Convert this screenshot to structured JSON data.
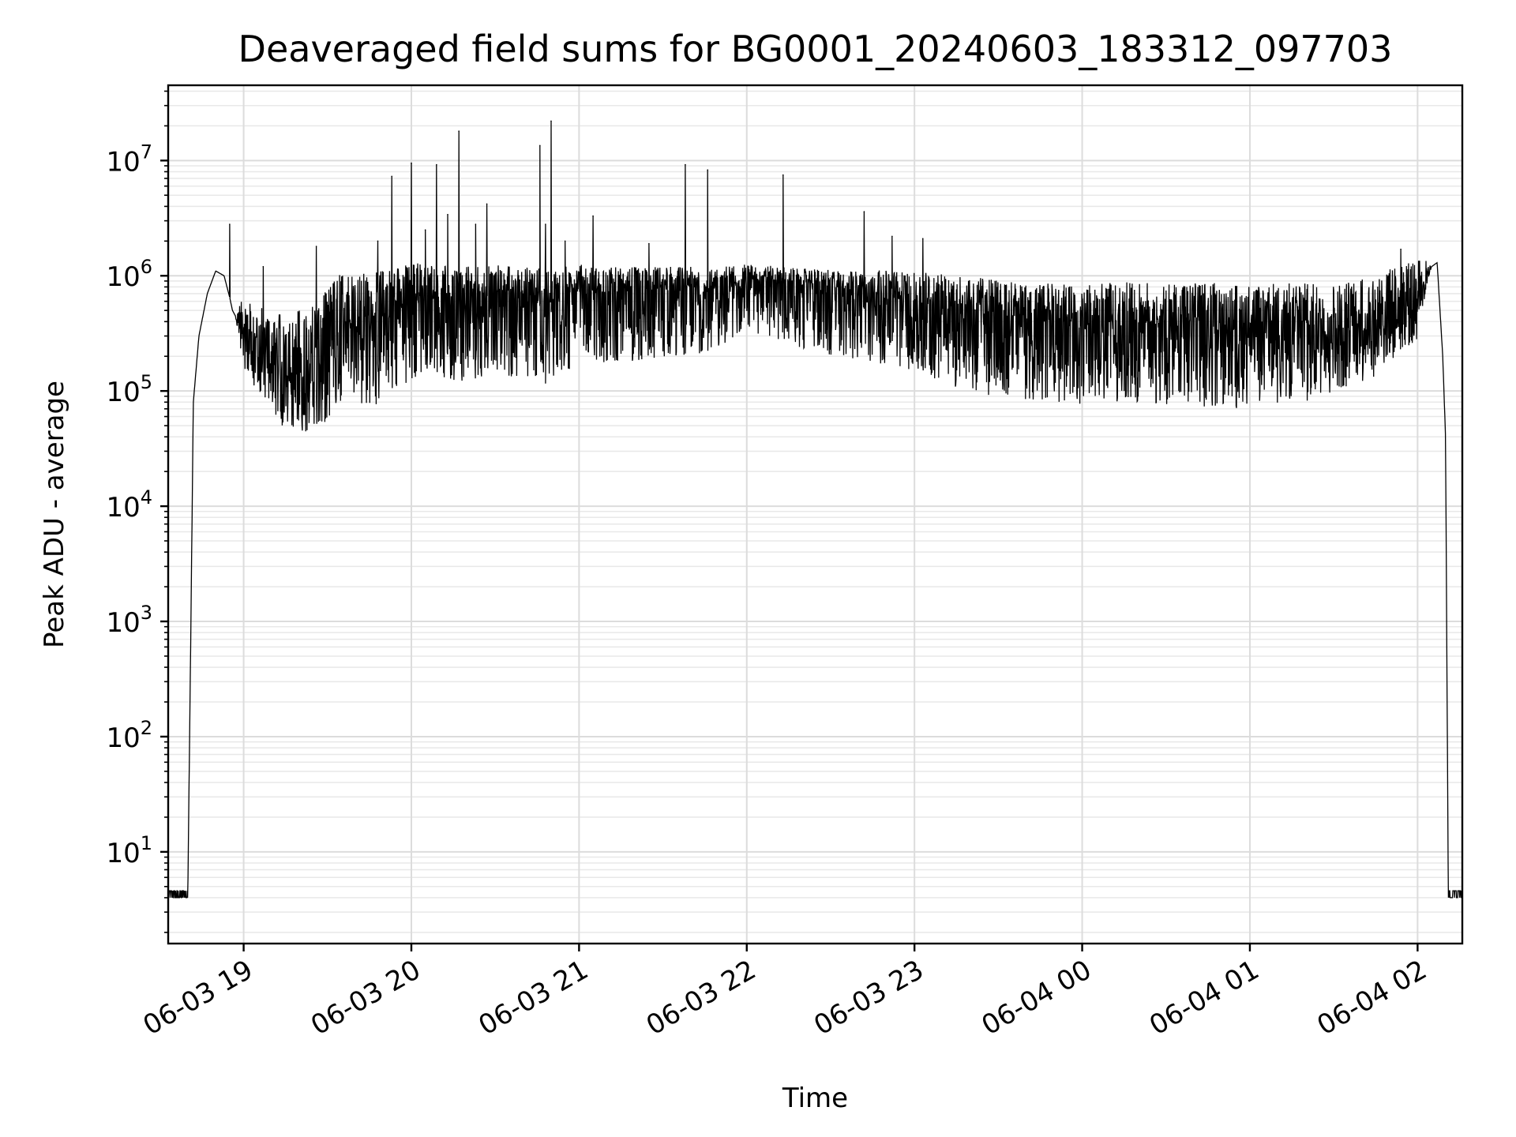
{
  "chart_data": {
    "type": "line",
    "title": "Deaveraged field sums for BG0001_20240603_183312_097703",
    "xlabel": "Time",
    "ylabel": "Peak ADU - average",
    "yscale": "log",
    "ylim": [
      1.6,
      45000000
    ],
    "xlim": [
      "2024-06-03 18:33",
      "2024-06-04 02:16"
    ],
    "grid": true,
    "x_ticks": [
      "06-03 19",
      "06-03 20",
      "06-03 21",
      "06-03 22",
      "06-03 23",
      "06-04 00",
      "06-04 01",
      "06-04 02"
    ],
    "y_ticks": [
      {
        "base": "10",
        "exp": "1",
        "value": 10
      },
      {
        "base": "10",
        "exp": "2",
        "value": 100
      },
      {
        "base": "10",
        "exp": "3",
        "value": 1000
      },
      {
        "base": "10",
        "exp": "4",
        "value": 10000
      },
      {
        "base": "10",
        "exp": "5",
        "value": 100000
      },
      {
        "base": "10",
        "exp": "6",
        "value": 1000000
      },
      {
        "base": "10",
        "exp": "7",
        "value": 10000000
      }
    ],
    "series": [
      {
        "color": "#000000",
        "x": [
          "2024-06-03 18:33",
          "2024-06-03 18:40",
          "2024-06-03 18:41",
          "2024-06-03 18:42",
          "2024-06-03 18:44",
          "2024-06-03 18:47",
          "2024-06-03 18:50",
          "2024-06-03 18:53",
          "2024-06-03 18:55",
          "2024-06-03 18:56",
          "2024-06-03 18:57",
          "2024-06-03 19:00",
          "2024-06-03 19:05",
          "2024-06-03 19:15",
          "2024-06-03 19:25",
          "2024-06-03 19:35",
          "2024-06-03 19:45",
          "2024-06-03 19:55",
          "2024-06-03 20:00",
          "2024-06-03 20:05",
          "2024-06-03 20:10",
          "2024-06-03 20:20",
          "2024-06-03 20:30",
          "2024-06-03 20:40",
          "2024-06-03 20:50",
          "2024-06-03 21:00",
          "2024-06-03 21:15",
          "2024-06-03 21:30",
          "2024-06-03 21:45",
          "2024-06-03 22:00",
          "2024-06-03 22:15",
          "2024-06-03 22:30",
          "2024-06-03 22:45",
          "2024-06-03 23:00",
          "2024-06-03 23:15",
          "2024-06-03 23:30",
          "2024-06-03 23:45",
          "2024-06-04 00:00",
          "2024-06-04 00:15",
          "2024-06-04 00:30",
          "2024-06-04 00:45",
          "2024-06-04 01:00",
          "2024-06-04 01:15",
          "2024-06-04 01:30",
          "2024-06-04 01:45",
          "2024-06-04 02:00",
          "2024-06-04 02:05",
          "2024-06-04 02:07",
          "2024-06-04 02:09",
          "2024-06-04 02:10",
          "2024-06-04 02:11",
          "2024-06-04 02:16"
        ],
        "y": [
          4,
          4,
          500,
          80000,
          300000,
          700000,
          1100000,
          1000000,
          650000,
          500000,
          450000,
          280000,
          220000,
          150000,
          200000,
          400000,
          350000,
          500000,
          600000,
          700000,
          650000,
          600000,
          700000,
          600000,
          550000,
          700000,
          700000,
          750000,
          700000,
          900000,
          850000,
          800000,
          700000,
          600000,
          500000,
          450000,
          400000,
          380000,
          400000,
          380000,
          350000,
          350000,
          380000,
          350000,
          450000,
          700000,
          1200000,
          1300000,
          200000,
          40000,
          4,
          4
        ],
        "spread_low": [
          1,
          1,
          1,
          1,
          1,
          1,
          1,
          1,
          1,
          1,
          1,
          0.45,
          0.45,
          0.3,
          0.2,
          0.2,
          0.2,
          0.2,
          0.2,
          0.2,
          0.2,
          0.2,
          0.2,
          0.2,
          0.2,
          0.25,
          0.25,
          0.25,
          0.3,
          0.35,
          0.3,
          0.25,
          0.25,
          0.25,
          0.2,
          0.2,
          0.2,
          0.2,
          0.2,
          0.2,
          0.2,
          0.2,
          0.2,
          0.25,
          0.3,
          0.4,
          1,
          1,
          1,
          1,
          1,
          1
        ],
        "spread_high": [
          1,
          1,
          1,
          1,
          1,
          1,
          1,
          1,
          1,
          1,
          1,
          2.2,
          2.5,
          3,
          3,
          2.8,
          3,
          2.5,
          2.2,
          1.9,
          1.9,
          2,
          1.8,
          2,
          2.1,
          1.8,
          1.7,
          1.6,
          1.7,
          1.4,
          1.4,
          1.4,
          1.6,
          1.8,
          2,
          2.1,
          2.2,
          2.3,
          2.2,
          2.3,
          2.5,
          2.4,
          2.3,
          2.4,
          2.3,
          2,
          1,
          1,
          1,
          1,
          1,
          1
        ],
        "spikes": [
          {
            "x": "2024-06-03 18:55",
            "y": 2800000
          },
          {
            "x": "2024-06-03 19:07",
            "y": 1200000
          },
          {
            "x": "2024-06-03 19:26",
            "y": 1800000
          },
          {
            "x": "2024-06-03 19:48",
            "y": 2000000
          },
          {
            "x": "2024-06-03 19:53",
            "y": 7300000
          },
          {
            "x": "2024-06-03 20:00",
            "y": 9500000
          },
          {
            "x": "2024-06-03 20:05",
            "y": 2500000
          },
          {
            "x": "2024-06-03 20:09",
            "y": 9200000
          },
          {
            "x": "2024-06-03 20:13",
            "y": 3400000
          },
          {
            "x": "2024-06-03 20:17",
            "y": 18000000
          },
          {
            "x": "2024-06-03 20:23",
            "y": 2800000
          },
          {
            "x": "2024-06-03 20:27",
            "y": 4200000
          },
          {
            "x": "2024-06-03 20:46",
            "y": 13500000
          },
          {
            "x": "2024-06-03 20:48",
            "y": 2800000
          },
          {
            "x": "2024-06-03 20:50",
            "y": 22000000
          },
          {
            "x": "2024-06-03 20:55",
            "y": 2000000
          },
          {
            "x": "2024-06-03 21:05",
            "y": 3300000
          },
          {
            "x": "2024-06-03 21:25",
            "y": 1900000
          },
          {
            "x": "2024-06-03 21:38",
            "y": 9200000
          },
          {
            "x": "2024-06-03 21:46",
            "y": 8300000
          },
          {
            "x": "2024-06-03 22:13",
            "y": 7500000
          },
          {
            "x": "2024-06-03 22:42",
            "y": 3600000
          },
          {
            "x": "2024-06-03 22:52",
            "y": 2200000
          },
          {
            "x": "2024-06-03 23:03",
            "y": 2100000
          },
          {
            "x": "2024-06-04 01:54",
            "y": 1700000
          }
        ]
      }
    ]
  }
}
